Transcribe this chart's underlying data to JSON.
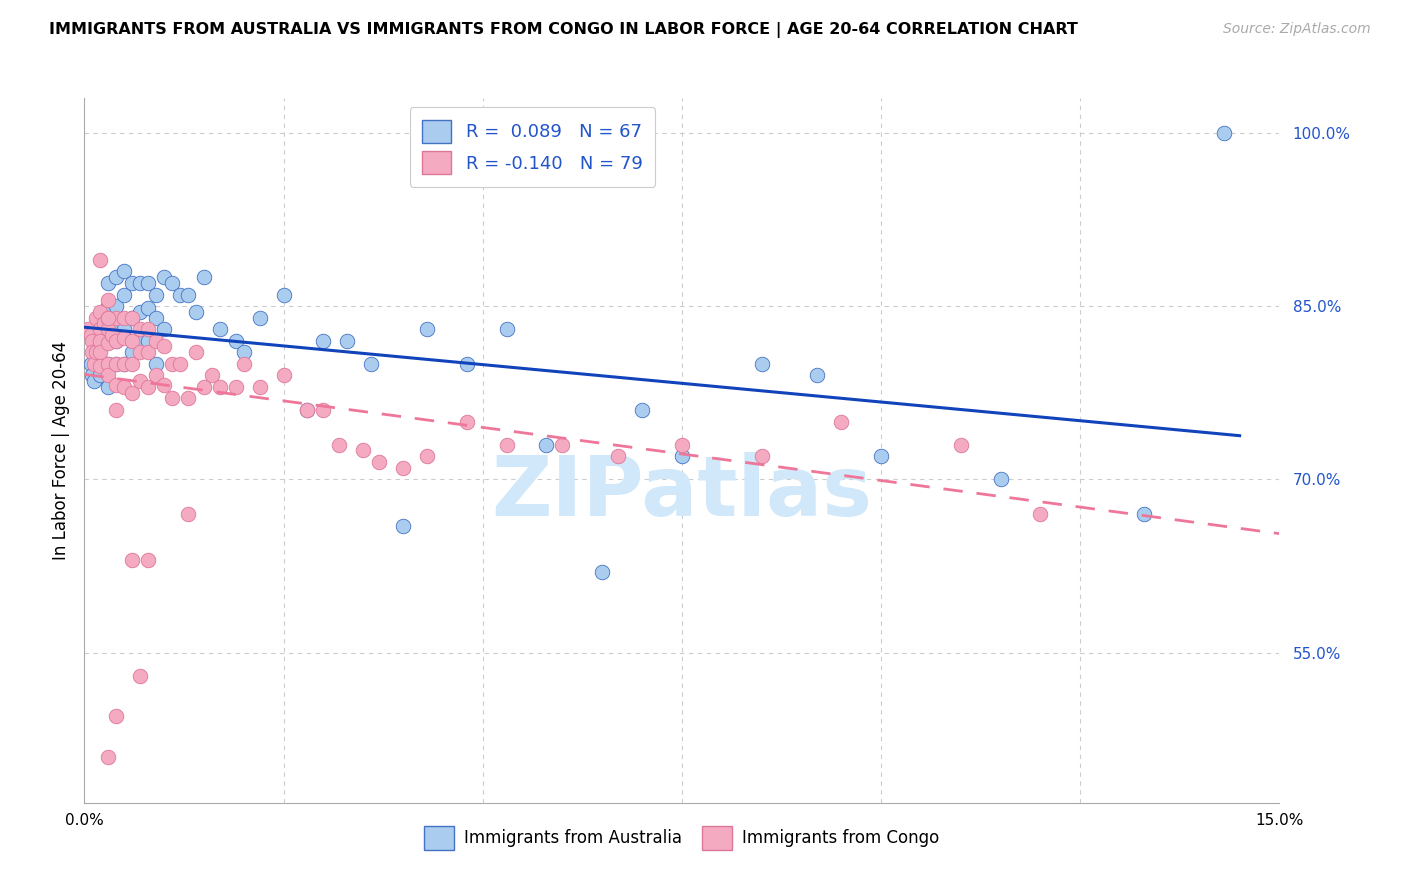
{
  "title": "IMMIGRANTS FROM AUSTRALIA VS IMMIGRANTS FROM CONGO IN LABOR FORCE | AGE 20-64 CORRELATION CHART",
  "source": "Source: ZipAtlas.com",
  "ylabel": "In Labor Force | Age 20-64",
  "xlim": [
    0.0,
    0.15
  ],
  "ylim": [
    0.42,
    1.03
  ],
  "yticks": [
    0.55,
    0.7,
    0.85,
    1.0
  ],
  "ytick_labels": [
    "55.0%",
    "70.0%",
    "85.0%",
    "100.0%"
  ],
  "xticks": [
    0.0,
    0.025,
    0.05,
    0.075,
    0.1,
    0.125,
    0.15
  ],
  "xtick_labels": [
    "0.0%",
    "",
    "",
    "",
    "",
    "",
    "15.0%"
  ],
  "australia_R": "0.089",
  "australia_N": 67,
  "congo_R": "-0.140",
  "congo_N": 79,
  "australia_color": "#aaccee",
  "congo_color": "#f4aac0",
  "australia_edge_color": "#4472c4",
  "congo_edge_color": "#dd7799",
  "australia_line_color": "#1144bb",
  "congo_line_color": "#ee7799",
  "legend_text_color": "#2255cc",
  "ytick_color": "#2255cc",
  "watermark_text": "ZIPatlas",
  "watermark_color": "#d0e8fa",
  "australia_scatter_x": [
    0.0008,
    0.001,
    0.0012,
    0.0015,
    0.0015,
    0.0018,
    0.002,
    0.002,
    0.002,
    0.0025,
    0.0025,
    0.003,
    0.003,
    0.003,
    0.003,
    0.003,
    0.0035,
    0.004,
    0.004,
    0.004,
    0.004,
    0.005,
    0.005,
    0.005,
    0.005,
    0.006,
    0.006,
    0.006,
    0.007,
    0.007,
    0.007,
    0.008,
    0.008,
    0.008,
    0.009,
    0.009,
    0.009,
    0.01,
    0.01,
    0.011,
    0.012,
    0.013,
    0.014,
    0.015,
    0.017,
    0.019,
    0.02,
    0.022,
    0.025,
    0.028,
    0.03,
    0.033,
    0.036,
    0.04,
    0.043,
    0.048,
    0.053,
    0.058,
    0.065,
    0.07,
    0.075,
    0.085,
    0.092,
    0.1,
    0.115,
    0.133,
    0.143
  ],
  "australia_scatter_y": [
    0.8,
    0.79,
    0.785,
    0.82,
    0.815,
    0.81,
    0.83,
    0.825,
    0.79,
    0.84,
    0.82,
    0.87,
    0.85,
    0.82,
    0.8,
    0.78,
    0.83,
    0.875,
    0.85,
    0.82,
    0.8,
    0.88,
    0.86,
    0.83,
    0.8,
    0.87,
    0.84,
    0.81,
    0.87,
    0.845,
    0.82,
    0.87,
    0.848,
    0.82,
    0.86,
    0.84,
    0.8,
    0.875,
    0.83,
    0.87,
    0.86,
    0.86,
    0.845,
    0.875,
    0.83,
    0.82,
    0.81,
    0.84,
    0.86,
    0.76,
    0.82,
    0.82,
    0.8,
    0.66,
    0.83,
    0.8,
    0.83,
    0.73,
    0.62,
    0.76,
    0.72,
    0.8,
    0.79,
    0.72,
    0.7,
    0.67,
    1.0
  ],
  "congo_scatter_x": [
    0.0005,
    0.0008,
    0.001,
    0.001,
    0.0012,
    0.0015,
    0.0015,
    0.002,
    0.002,
    0.002,
    0.002,
    0.002,
    0.0025,
    0.003,
    0.003,
    0.003,
    0.003,
    0.003,
    0.003,
    0.0035,
    0.004,
    0.004,
    0.004,
    0.004,
    0.004,
    0.005,
    0.005,
    0.005,
    0.005,
    0.006,
    0.006,
    0.006,
    0.006,
    0.007,
    0.007,
    0.007,
    0.008,
    0.008,
    0.008,
    0.009,
    0.009,
    0.01,
    0.01,
    0.011,
    0.011,
    0.012,
    0.013,
    0.014,
    0.015,
    0.016,
    0.017,
    0.019,
    0.02,
    0.022,
    0.025,
    0.028,
    0.03,
    0.032,
    0.035,
    0.037,
    0.04,
    0.043,
    0.048,
    0.053,
    0.06,
    0.067,
    0.075,
    0.085,
    0.095,
    0.11,
    0.12,
    0.013,
    0.008,
    0.006,
    0.007,
    0.004,
    0.003,
    0.002,
    0.003
  ],
  "congo_scatter_y": [
    0.83,
    0.825,
    0.82,
    0.81,
    0.8,
    0.84,
    0.81,
    0.845,
    0.83,
    0.82,
    0.81,
    0.798,
    0.835,
    0.855,
    0.84,
    0.83,
    0.818,
    0.8,
    0.79,
    0.825,
    0.84,
    0.82,
    0.8,
    0.782,
    0.76,
    0.84,
    0.822,
    0.8,
    0.78,
    0.84,
    0.82,
    0.8,
    0.775,
    0.83,
    0.81,
    0.785,
    0.83,
    0.81,
    0.78,
    0.82,
    0.79,
    0.815,
    0.782,
    0.8,
    0.77,
    0.8,
    0.77,
    0.81,
    0.78,
    0.79,
    0.78,
    0.78,
    0.8,
    0.78,
    0.79,
    0.76,
    0.76,
    0.73,
    0.725,
    0.715,
    0.71,
    0.72,
    0.75,
    0.73,
    0.73,
    0.72,
    0.73,
    0.72,
    0.75,
    0.73,
    0.67,
    0.67,
    0.63,
    0.63,
    0.53,
    0.495,
    0.46,
    0.89,
    0.84
  ]
}
